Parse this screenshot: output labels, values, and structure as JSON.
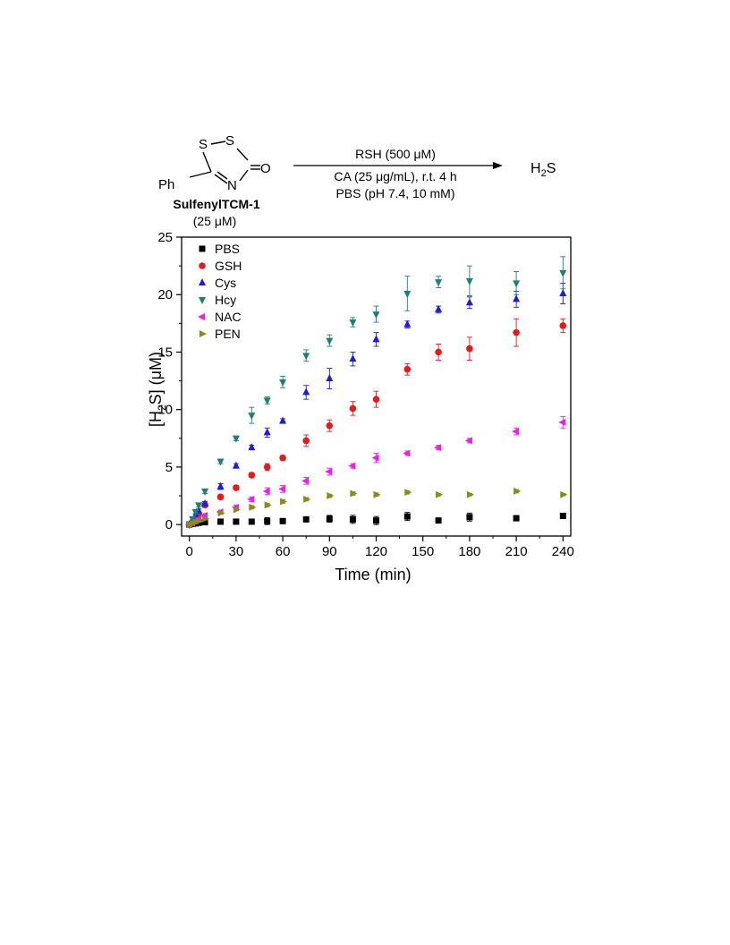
{
  "scheme": {
    "substituent": "Ph",
    "atom_s1": "S",
    "atom_s2": "S",
    "atom_n": "N",
    "atom_o": "O",
    "compound_name": "SulfenylTCM-1",
    "compound_conc": "(25 μM)",
    "reagent_line1": "RSH (500 μM)",
    "reagent_line2": "CA (25 μg/mL), r.t. 4 h",
    "reagent_line3": "PBS (pH 7.4, 10 mM)",
    "product_main": "H",
    "product_sub": "2",
    "product_end": "S"
  },
  "chart_data": {
    "type": "scatter",
    "xlabel": "Time (min)",
    "ylabel_main": "[H",
    "ylabel_sub": "2",
    "ylabel_end": "S] (μM)",
    "xlim": [
      -5,
      245
    ],
    "ylim": [
      -1,
      25
    ],
    "xticks": [
      0,
      30,
      60,
      90,
      120,
      150,
      180,
      210,
      240
    ],
    "yticks": [
      0,
      5,
      10,
      15,
      20,
      25
    ],
    "legend_position": "top-left",
    "grid": false,
    "series": [
      {
        "name": "PBS",
        "marker": "square",
        "color": "#000000",
        "points": [
          [
            0,
            0
          ],
          [
            2,
            0.05
          ],
          [
            4,
            0.1
          ],
          [
            6,
            0.15
          ],
          [
            10,
            0.2
          ],
          [
            20,
            0.25
          ],
          [
            30,
            0.25
          ],
          [
            40,
            0.25
          ],
          [
            50,
            0.3
          ],
          [
            60,
            0.3
          ],
          [
            75,
            0.45
          ],
          [
            90,
            0.5
          ],
          [
            105,
            0.45
          ],
          [
            120,
            0.35
          ],
          [
            140,
            0.7
          ],
          [
            160,
            0.35
          ],
          [
            180,
            0.65
          ],
          [
            210,
            0.55
          ],
          [
            240,
            0.75
          ]
        ],
        "errors": [
          0.05,
          0.05,
          0.05,
          0.05,
          0.1,
          0.1,
          0.1,
          0.1,
          0.3,
          0.1,
          0.1,
          0.3,
          0.35,
          0.35,
          0.35,
          0.1,
          0.35,
          0.15,
          0.2
        ]
      },
      {
        "name": "GSH",
        "marker": "circle",
        "color": "#e8191a",
        "points": [
          [
            0,
            0
          ],
          [
            2,
            0.2
          ],
          [
            4,
            0.5
          ],
          [
            6,
            0.9
          ],
          [
            10,
            1.7
          ],
          [
            20,
            2.4
          ],
          [
            30,
            3.2
          ],
          [
            40,
            4.3
          ],
          [
            50,
            5.0
          ],
          [
            60,
            5.8
          ],
          [
            75,
            7.3
          ],
          [
            90,
            8.6
          ],
          [
            105,
            10.1
          ],
          [
            120,
            10.9
          ],
          [
            140,
            13.5
          ],
          [
            160,
            15.0
          ],
          [
            180,
            15.3
          ],
          [
            210,
            16.7
          ],
          [
            240,
            17.3
          ]
        ],
        "errors": [
          0.05,
          0.1,
          0.1,
          0.15,
          0.2,
          0.2,
          0.2,
          0.2,
          0.3,
          0.2,
          0.5,
          0.5,
          0.6,
          0.7,
          0.5,
          0.7,
          1.0,
          1.2,
          0.6
        ]
      },
      {
        "name": "Cys",
        "marker": "triangle-up",
        "color": "#1c1ddb",
        "points": [
          [
            0,
            0
          ],
          [
            2,
            0.3
          ],
          [
            4,
            0.8
          ],
          [
            6,
            1.2
          ],
          [
            10,
            1.8
          ],
          [
            20,
            3.3
          ],
          [
            30,
            5.1
          ],
          [
            40,
            6.7
          ],
          [
            50,
            8.0
          ],
          [
            60,
            9.0
          ],
          [
            75,
            11.5
          ],
          [
            90,
            12.7
          ],
          [
            105,
            14.4
          ],
          [
            120,
            16.1
          ],
          [
            140,
            17.4
          ],
          [
            160,
            18.7
          ],
          [
            180,
            19.3
          ],
          [
            210,
            19.6
          ],
          [
            240,
            20.1
          ]
        ],
        "errors": [
          0.05,
          0.1,
          0.1,
          0.15,
          0.2,
          0.25,
          0.2,
          0.2,
          0.4,
          0.2,
          0.6,
          0.9,
          0.6,
          0.6,
          0.3,
          0.3,
          0.5,
          0.7,
          0.9
        ]
      },
      {
        "name": "Hcy",
        "marker": "triangle-down",
        "color": "#1b7f7c",
        "points": [
          [
            0,
            0
          ],
          [
            2,
            0.5
          ],
          [
            4,
            1.1
          ],
          [
            6,
            1.7
          ],
          [
            10,
            2.9
          ],
          [
            20,
            5.5
          ],
          [
            30,
            7.5
          ],
          [
            40,
            9.5
          ],
          [
            50,
            10.8
          ],
          [
            60,
            12.4
          ],
          [
            75,
            14.7
          ],
          [
            90,
            16.0
          ],
          [
            105,
            17.6
          ],
          [
            120,
            18.3
          ],
          [
            140,
            20.1
          ],
          [
            160,
            21.1
          ],
          [
            180,
            21.2
          ],
          [
            210,
            21.0
          ],
          [
            240,
            21.9
          ]
        ],
        "errors": [
          0.05,
          0.1,
          0.15,
          0.15,
          0.2,
          0.2,
          0.2,
          0.7,
          0.3,
          0.5,
          0.5,
          0.5,
          0.4,
          0.7,
          1.5,
          0.5,
          1.3,
          1.0,
          1.4
        ]
      },
      {
        "name": "NAC",
        "marker": "triangle-left",
        "color": "#ee1ee8",
        "points": [
          [
            0,
            0
          ],
          [
            2,
            0.1
          ],
          [
            4,
            0.3
          ],
          [
            6,
            0.5
          ],
          [
            10,
            0.8
          ],
          [
            20,
            1.1
          ],
          [
            30,
            1.5
          ],
          [
            40,
            2.2
          ],
          [
            50,
            2.9
          ],
          [
            60,
            3.1
          ],
          [
            75,
            3.8
          ],
          [
            90,
            4.6
          ],
          [
            105,
            5.1
          ],
          [
            120,
            5.8
          ],
          [
            140,
            6.2
          ],
          [
            160,
            6.7
          ],
          [
            180,
            7.3
          ],
          [
            210,
            8.1
          ],
          [
            240,
            8.9
          ]
        ],
        "errors": [
          0.05,
          0.05,
          0.1,
          0.1,
          0.15,
          0.15,
          0.2,
          0.2,
          0.3,
          0.3,
          0.3,
          0.3,
          0.2,
          0.4,
          0.2,
          0.2,
          0.2,
          0.3,
          0.5
        ]
      },
      {
        "name": "PEN",
        "marker": "triangle-right",
        "color": "#8a8a17",
        "points": [
          [
            0,
            0
          ],
          [
            2,
            0.1
          ],
          [
            4,
            0.2
          ],
          [
            6,
            0.3
          ],
          [
            10,
            0.5
          ],
          [
            20,
            1.0
          ],
          [
            30,
            1.3
          ],
          [
            40,
            1.5
          ],
          [
            50,
            1.7
          ],
          [
            60,
            2.0
          ],
          [
            75,
            2.2
          ],
          [
            90,
            2.5
          ],
          [
            105,
            2.7
          ],
          [
            120,
            2.6
          ],
          [
            140,
            2.8
          ],
          [
            160,
            2.6
          ],
          [
            180,
            2.6
          ],
          [
            210,
            2.9
          ],
          [
            240,
            2.6
          ]
        ],
        "errors": [
          0.05,
          0.05,
          0.05,
          0.1,
          0.1,
          0.1,
          0.1,
          0.15,
          0.15,
          0.15,
          0.15,
          0.15,
          0.15,
          0.15,
          0.15,
          0.1,
          0.1,
          0.15,
          0.1
        ]
      }
    ]
  }
}
